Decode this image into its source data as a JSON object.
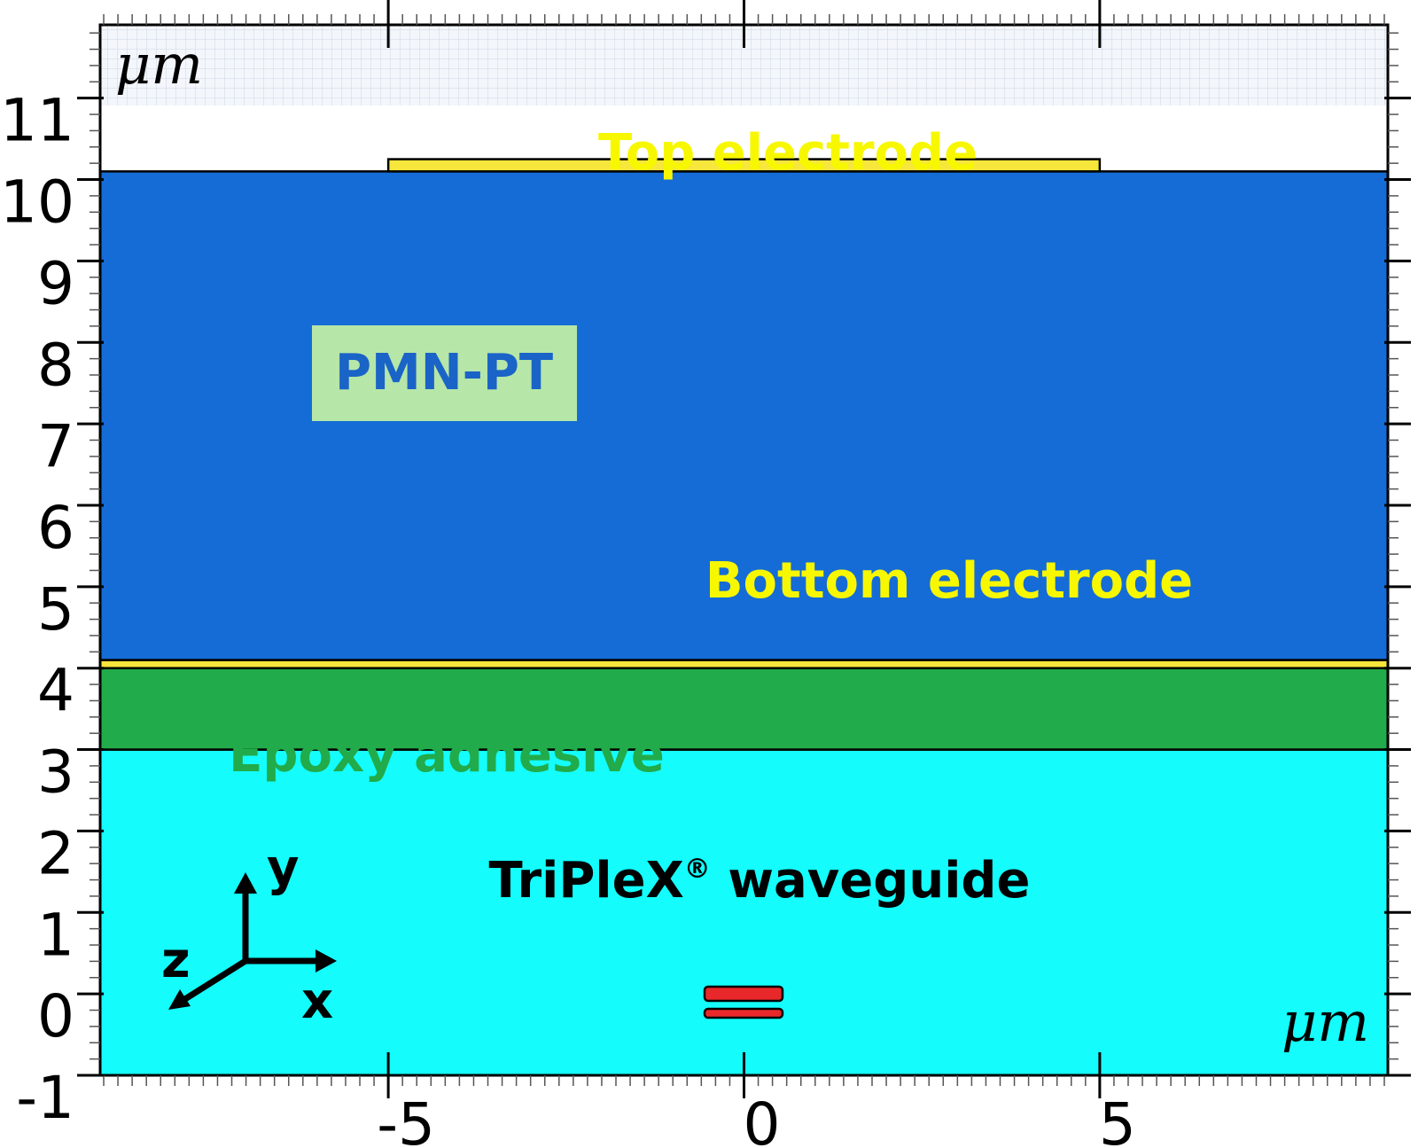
{
  "diagram": {
    "x_axis": {
      "ticks": [
        "-5",
        "0",
        "5"
      ],
      "tick_values": [
        -5,
        0,
        5
      ],
      "range": [
        -9.05,
        9.05
      ],
      "unit": "μm"
    },
    "y_axis": {
      "ticks": [
        "-1",
        "0",
        "1",
        "2",
        "3",
        "4",
        "5",
        "6",
        "7",
        "8",
        "9",
        "10",
        "11"
      ],
      "tick_values": [
        -1,
        0,
        1,
        2,
        3,
        4,
        5,
        6,
        7,
        8,
        9,
        10,
        11
      ],
      "range": [
        -1,
        11.9
      ],
      "unit": "μm"
    },
    "layers": [
      {
        "name": "TriPleX® waveguide",
        "y_from": -1,
        "y_to": 3,
        "color": "#14fcfc"
      },
      {
        "name": "Epoxy adhesive",
        "y_from": 3,
        "y_to": 4,
        "color": "#22ab4a"
      },
      {
        "name": "Bottom electrode",
        "y_from": 4,
        "y_to": 4.1,
        "color": "#f7e63b"
      },
      {
        "name": "PMN-PT",
        "y_from": 4.1,
        "y_to": 10.1,
        "color": "#156cd6"
      },
      {
        "name": "Top electrode",
        "x_from": -5,
        "x_to": 5,
        "y_from": 10.1,
        "y_to": 10.25,
        "color": "#f7e63b"
      }
    ],
    "labels": {
      "top_electrode": "Top electrode",
      "pmn_pt": "PMN-PT",
      "bottom_electrode": "Bottom electrode",
      "epoxy": "Epoxy adhesive",
      "waveguide": "TriPleX",
      "registered": "®",
      "waveguide_suffix": " waveguide",
      "unit_top": "μm",
      "unit_bottom": "μm"
    },
    "colors": {
      "label_yellow": "#f7f700",
      "label_blue": "#1a63c7",
      "label_green": "#22ab4a",
      "pmn_box": "#b6e6a8",
      "core": "#e8282a",
      "air": "#f3f6fb"
    },
    "axes_triad": {
      "x": "x",
      "y": "y",
      "z": "z"
    }
  }
}
